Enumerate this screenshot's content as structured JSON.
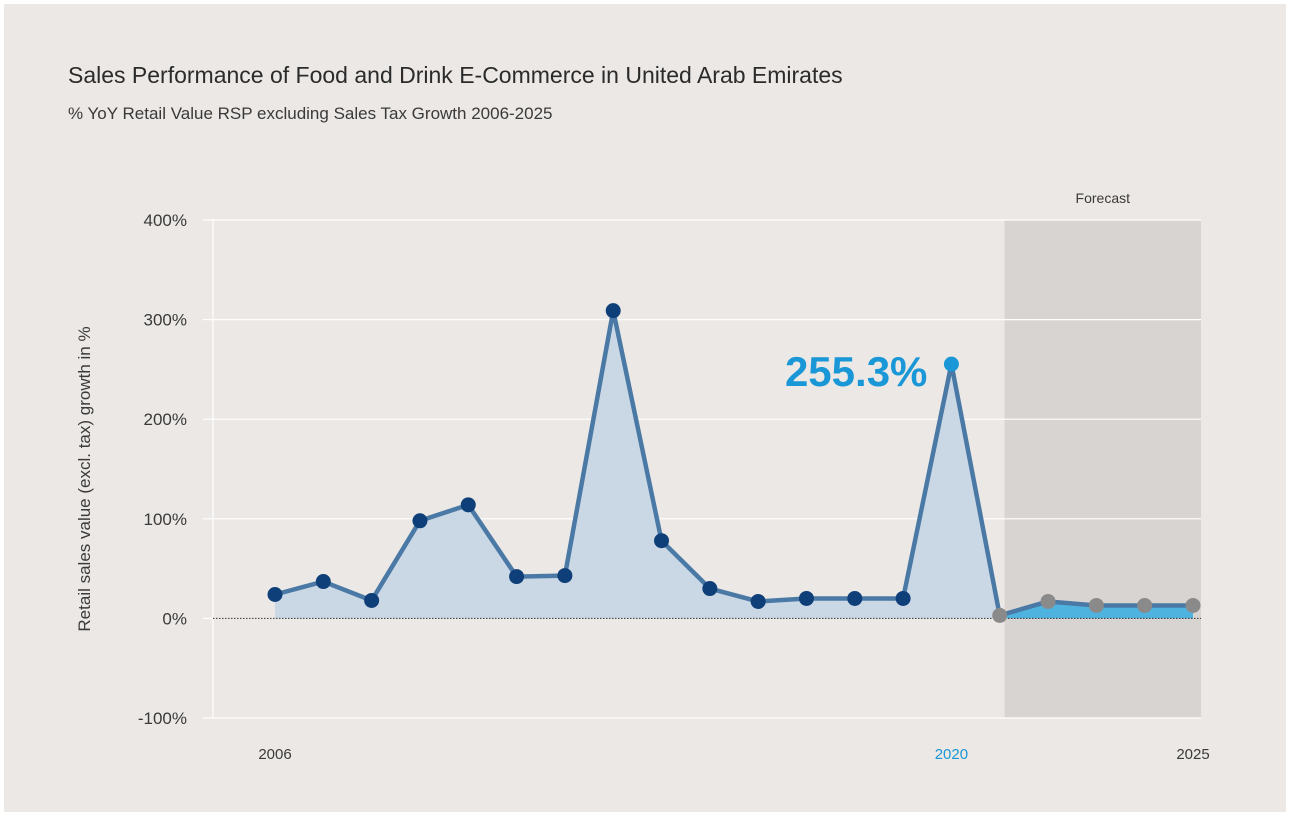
{
  "title": "Sales Performance of Food and Drink E-Commerce in United Arab Emirates",
  "subtitle": "% YoY Retail Value RSP excluding Sales Tax Growth 2006-2025",
  "colors": {
    "background": "#ebe8e5",
    "actual_line": "#4a79a5",
    "actual_marker": "#0f3f78",
    "actual_fill": "#cad8e6",
    "forecast_marker": "#8a8a8a",
    "forecast_fill": "#4fb3e0",
    "forecast_region": "#d8d4d2",
    "highlight": "#1a97d6",
    "grid": "#ffffff"
  },
  "chart_data": {
    "type": "line",
    "title": "Sales Performance of Food and Drink E-Commerce in United Arab Emirates",
    "subtitle": "% YoY Retail Value RSP excluding Sales Tax Growth 2006-2025",
    "xlabel": "",
    "ylabel": "Retail sales value (excl. tax) growth in %",
    "ylim": [
      -100,
      400
    ],
    "yticks": [
      -100,
      0,
      100,
      200,
      300,
      400
    ],
    "ytick_labels": [
      "-100%",
      "0%",
      "100%",
      "200%",
      "300%",
      "400%"
    ],
    "xlim": [
      2005.25,
      2025.15
    ],
    "xtick_labels": [
      {
        "year": 2006,
        "label": "2006",
        "highlight": false
      },
      {
        "year": 2020,
        "label": "2020",
        "highlight": true
      },
      {
        "year": 2025,
        "label": "2025",
        "highlight": false
      }
    ],
    "grid": true,
    "forecast_region": {
      "label": "Forecast",
      "from_year": 2021.1,
      "to_year": 2025.15
    },
    "annotation": {
      "text": "255.3%",
      "year": 2020,
      "value": 255.3
    },
    "series": [
      {
        "name": "",
        "kind": "actual",
        "x": [
          2006,
          2007,
          2008,
          2009,
          2010,
          2011,
          2012,
          2013,
          2014,
          2015,
          2016,
          2017,
          2018,
          2019,
          2020
        ],
        "values": [
          24,
          37,
          18,
          98,
          114,
          42,
          43,
          309,
          78,
          30,
          17,
          20,
          20,
          20,
          255.3
        ]
      },
      {
        "name": "",
        "kind": "forecast",
        "x": [
          2021,
          2022,
          2023,
          2024,
          2025
        ],
        "values": [
          3,
          17,
          13,
          13,
          13
        ]
      }
    ]
  }
}
